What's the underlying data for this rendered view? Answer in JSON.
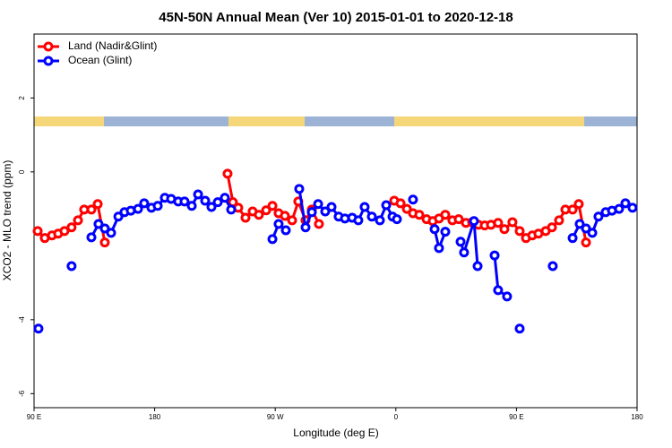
{
  "chart_data": {
    "type": "line",
    "title": "45N-50N Annual Mean (Ver 10)   2015-01-01 to 2020-12-18",
    "x_label": "Longitude (deg E)",
    "y_label": "XCO2 - MLO trend (ppm)",
    "xlim": [
      90,
      540
    ],
    "ylim": [
      -6.38,
      3.73
    ],
    "xticks": [
      {
        "value": 90,
        "label": "90 E"
      },
      180,
      {
        "value": 270,
        "label": "90 W"
      },
      {
        "value": 360,
        "label": "0"
      },
      {
        "value": 450,
        "label": "90 E"
      },
      {
        "value": 540,
        "label": "180"
      }
    ],
    "yticks": [
      -6,
      -4,
      0,
      2
    ],
    "legend": "topleft",
    "series": [
      {
        "name": "Land (Nadir&Glint)",
        "color": "#ff0000",
        "x": [
          92.7,
          98,
          103.4,
          108,
          112.7,
          118,
          122.8,
          127.4,
          132.8,
          137.5,
          142.8,
          null,
          234.4,
          238.4,
          242.4,
          247.8,
          253.1,
          257.8,
          263.2,
          267.9,
          272.5,
          277.2,
          282.6,
          287.2,
          292.6,
          297.3,
          302.6,
          null,
          358.8,
          363.5,
          368.2,
          372.8,
          377.5,
          382.9,
          387.5,
          392.2,
          396.9,
          402.2,
          406.9,
          412.3,
          417,
          421.6,
          426.3,
          431,
          436.3,
          441,
          447,
          452.4,
          457.1,
          461.8,
          466.4,
          471.8,
          476.5,
          481.8,
          486.5,
          491.9,
          496.5,
          501.9
        ],
        "values": [
          -1.6,
          -1.79,
          -1.72,
          -1.67,
          -1.6,
          -1.5,
          -1.31,
          -1.02,
          -1.02,
          -0.87,
          -1.91,
          null,
          -0.05,
          -0.82,
          -0.97,
          -1.24,
          -1.07,
          -1.16,
          -1.04,
          -0.92,
          -1.12,
          -1.19,
          -1.31,
          -0.8,
          -1.31,
          -1.02,
          -1.41,
          null,
          -0.78,
          -0.85,
          -1.0,
          -1.12,
          -1.16,
          -1.28,
          -1.33,
          -1.26,
          -1.16,
          -1.31,
          -1.28,
          -1.38,
          -1.36,
          -1.43,
          -1.45,
          -1.43,
          -1.38,
          -1.55,
          -1.36,
          -1.6,
          -1.79,
          -1.72,
          -1.67,
          -1.6,
          -1.5,
          -1.31,
          -1.02,
          -1.02,
          -0.87,
          -1.91
        ]
      },
      {
        "name": "Ocean (Glint)",
        "color": "#0000ff",
        "x": [
          93.3,
          null,
          118,
          null,
          132.8,
          138.1,
          142.8,
          147.5,
          152.9,
          157.5,
          162.2,
          167.6,
          172.2,
          177.6,
          182.3,
          187.6,
          192.3,
          197.6,
          202.3,
          207.7,
          212.4,
          217.7,
          222.4,
          227.1,
          232.4,
          237.1,
          null,
          267.9,
          272.5,
          277.9,
          null,
          287.9,
          292.6,
          297.3,
          302,
          307.3,
          312,
          317.3,
          322,
          327.4,
          332,
          336.7,
          342.1,
          348.1,
          352.8,
          357.5,
          360.8,
          null,
          372.8,
          null,
          388.9,
          392.2,
          396.9,
          null,
          408.3,
          410.9,
          418.3,
          421,
          null,
          433.7,
          436.3,
          443,
          null,
          452.4,
          null,
          477.1,
          null,
          491.9,
          497.2,
          501.9,
          506.6,
          511.2,
          516.6,
          521.3,
          526.6,
          531.3,
          536.6
        ],
        "values": [
          -4.24,
          null,
          -2.55,
          null,
          -1.77,
          -1.41,
          -1.53,
          -1.65,
          -1.21,
          -1.09,
          -1.05,
          -1.0,
          -0.85,
          -0.97,
          -0.92,
          -0.7,
          -0.73,
          -0.8,
          -0.8,
          -0.92,
          -0.61,
          -0.78,
          -0.95,
          -0.82,
          -0.7,
          -1.02,
          null,
          -1.82,
          -1.41,
          -1.58,
          null,
          -0.46,
          -1.5,
          -1.09,
          -0.87,
          -1.07,
          -0.95,
          -1.21,
          -1.26,
          -1.24,
          -1.31,
          -0.95,
          -1.21,
          -1.31,
          -0.9,
          -1.21,
          -1.28,
          null,
          -0.75,
          null,
          -1.55,
          -2.06,
          -1.62,
          null,
          -1.89,
          -2.18,
          -1.33,
          -2.55,
          null,
          -2.26,
          -3.2,
          -3.37,
          null,
          -4.24,
          null,
          -2.55,
          null,
          -1.79,
          -1.41,
          -1.53,
          -1.65,
          -1.21,
          -1.09,
          -1.05,
          -1.0,
          -0.85,
          -0.97
        ]
      }
    ]
  }
}
